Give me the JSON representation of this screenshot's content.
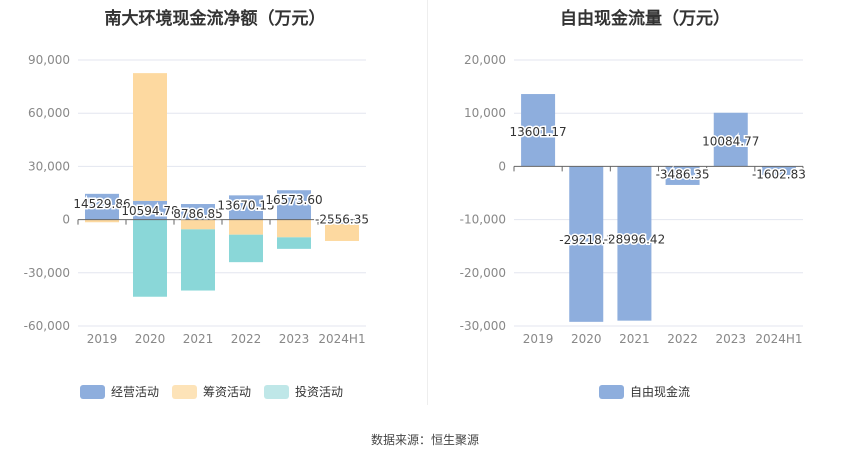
{
  "chart_data": [
    {
      "type": "bar",
      "stacked": true,
      "title": "南大环境现金流净额（万元）",
      "categories": [
        "2019",
        "2020",
        "2021",
        "2022",
        "2023",
        "2024H1"
      ],
      "series": [
        {
          "name": "经营活动",
          "color": "#8eaedd",
          "values": [
            14529.86,
            10594.78,
            8786.85,
            13670.15,
            16573.6,
            -2556.35
          ],
          "labels": [
            "14529.86",
            "10594.78",
            "8786.85",
            "13670.15",
            "16573.60",
            "-2556.35"
          ]
        },
        {
          "name": "筹资活动",
          "color": "#fdd9a0",
          "values": [
            -1500,
            72000,
            -5500,
            -8500,
            -10000,
            -9500
          ]
        },
        {
          "name": "投资活动",
          "color": "#8ad7d8",
          "values": [
            0,
            -43500,
            -34500,
            -15500,
            -6500,
            0
          ]
        }
      ],
      "ylim": [
        -60000,
        90000
      ],
      "yticks": [
        "90,000",
        "60,000",
        "30,000",
        "0",
        "-30,000",
        "-60,000"
      ],
      "ytick_values": [
        90000,
        60000,
        30000,
        0,
        -30000,
        -60000
      ]
    },
    {
      "type": "bar",
      "title": "自由现金流量（万元）",
      "categories": [
        "2019",
        "2020",
        "2021",
        "2022",
        "2023",
        "2024H1"
      ],
      "series": [
        {
          "name": "自由现金流",
          "color": "#8eaedd",
          "values": [
            13601.17,
            -29218.1,
            -28996.42,
            -3486.35,
            10084.77,
            -1602.83
          ],
          "labels": [
            "13601.17",
            "-29218.1",
            "-28996.42",
            "-3486.35",
            "10084.77",
            "-1602.83"
          ]
        }
      ],
      "ylim": [
        -30000,
        20000
      ],
      "yticks": [
        "20,000",
        "10,000",
        "0",
        "-10,000",
        "-20,000",
        "-30,000"
      ],
      "ytick_values": [
        20000,
        10000,
        0,
        -10000,
        -20000,
        -30000
      ]
    }
  ],
  "legend_left": [
    "经营活动",
    "筹资活动",
    "投资活动"
  ],
  "legend_right": [
    "自由现金流"
  ],
  "source": "数据来源：恒生聚源"
}
